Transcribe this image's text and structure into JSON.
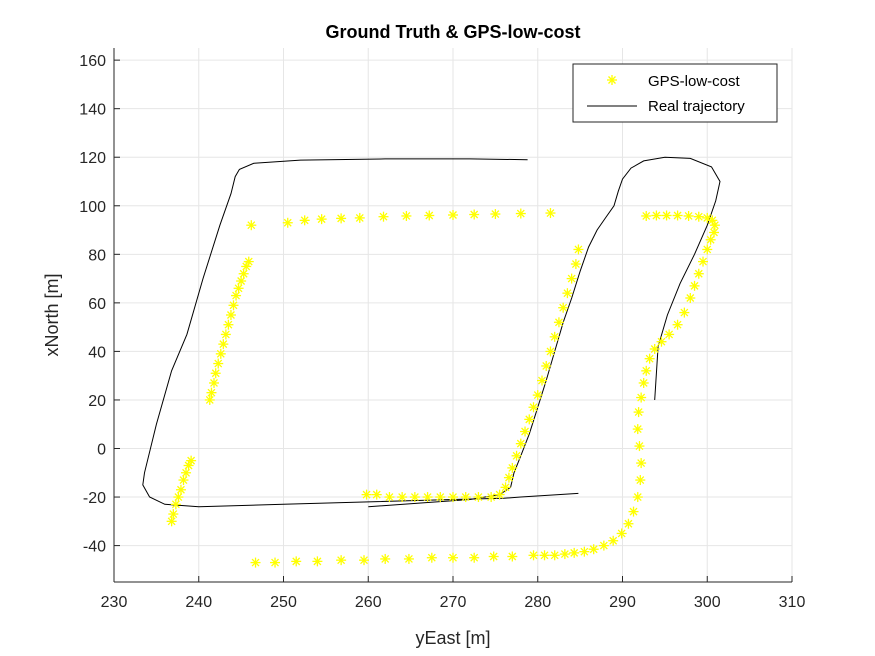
{
  "chart_data": {
    "type": "scatter",
    "title": "Ground Truth & GPS-low-cost",
    "xlabel": "yEast [m]",
    "ylabel": "xNorth [m]",
    "xlim": [
      230,
      310
    ],
    "ylim": [
      -55,
      165
    ],
    "xticks": [
      230,
      240,
      250,
      260,
      270,
      280,
      290,
      300,
      310
    ],
    "yticks": [
      -40,
      -20,
      0,
      20,
      40,
      60,
      80,
      100,
      120,
      140,
      160
    ],
    "grid": true,
    "legend_position": "top-right",
    "colors": {
      "gps": "#ffff00",
      "trajectory": "#000000",
      "axes": "#262626",
      "grid": "#e6e6e6"
    },
    "series": [
      {
        "name": "GPS-low-cost",
        "kind": "marker",
        "marker": "*",
        "x": [
          236.8,
          237.0,
          237.3,
          237.6,
          237.9,
          238.2,
          238.5,
          238.8,
          239.1,
          241.3,
          241.5,
          241.8,
          242.0,
          242.3,
          242.6,
          242.9,
          243.2,
          243.5,
          243.8,
          244.1,
          244.4,
          244.7,
          245.0,
          245.3,
          245.6,
          245.9,
          246.2,
          250.5,
          252.5,
          254.5,
          256.8,
          259.0,
          261.8,
          264.5,
          267.2,
          270.0,
          272.5,
          275.0,
          278.0,
          281.5,
          259.8,
          261.0,
          262.5,
          264.0,
          265.5,
          267.0,
          268.5,
          270.0,
          271.5,
          273.0,
          274.5,
          275.5,
          276.2,
          276.6,
          277.0,
          277.5,
          278.0,
          278.5,
          279.0,
          279.5,
          280.0,
          280.5,
          281.0,
          281.5,
          282.0,
          282.5,
          283.0,
          283.5,
          284.0,
          284.5,
          284.8,
          246.7,
          249.0,
          251.5,
          254.0,
          256.8,
          259.5,
          262.0,
          264.8,
          267.5,
          270.0,
          272.5,
          274.8,
          277.0,
          279.5,
          280.8,
          282.0,
          283.2,
          284.3,
          285.5,
          286.6,
          287.8,
          288.9,
          289.9,
          290.7,
          291.3,
          291.8,
          292.1,
          292.2,
          292.0,
          291.8,
          291.9,
          292.2,
          292.5,
          292.8,
          293.2,
          293.8,
          294.6,
          295.5,
          296.5,
          297.3,
          298.0,
          298.5,
          299.0,
          299.5,
          300.0,
          300.4,
          300.8,
          300.9,
          300.6,
          300.0,
          299.0,
          297.8,
          296.5,
          295.2,
          294.0,
          292.8
        ],
        "y": [
          -30,
          -27,
          -23,
          -20,
          -17,
          -13,
          -10,
          -7,
          -5,
          20,
          23,
          27,
          31,
          35,
          39,
          43,
          47,
          51,
          55,
          59,
          63,
          66,
          69,
          72,
          75,
          77,
          92,
          93,
          94,
          94.5,
          94.8,
          95,
          95.5,
          95.8,
          96,
          96.2,
          96.4,
          96.6,
          96.8,
          97,
          -19,
          -19,
          -20,
          -20,
          -20,
          -20,
          -20,
          -20,
          -20,
          -20,
          -20,
          -19,
          -16,
          -12,
          -8,
          -3,
          2,
          7,
          12,
          17,
          22,
          28,
          34,
          40,
          46,
          52,
          58,
          64,
          70,
          76,
          82,
          -47,
          -47,
          -46.5,
          -46.5,
          -46,
          -46,
          -45.5,
          -45.5,
          -45,
          -45,
          -45,
          -44.5,
          -44.5,
          -44,
          -44,
          -44,
          -43.5,
          -43,
          -42.5,
          -41.5,
          -40,
          -38,
          -35,
          -31,
          -26,
          -20,
          -13,
          -6,
          1,
          8,
          15,
          21,
          27,
          32,
          37,
          41,
          44,
          47,
          51,
          56,
          62,
          67,
          72,
          77,
          82,
          86,
          89,
          92,
          94,
          95,
          95.5,
          95.8,
          96,
          96,
          96,
          95.8
        ]
      },
      {
        "name": "Real trajectory",
        "kind": "line",
        "x": [
          278.8,
          272.0,
          262.0,
          252.0,
          246.5,
          244.8,
          244.3,
          243.8,
          242.5,
          240.5,
          238.6,
          236.8,
          235.0,
          233.6,
          233.4,
          234.2,
          236.0,
          240.0,
          250.0,
          260.0,
          270.0,
          276.0,
          278.0,
          284.8
        ],
        "y": [
          119,
          119.3,
          119.3,
          118.8,
          117.5,
          115,
          112,
          105,
          92,
          70,
          47,
          32,
          10,
          -10,
          -15,
          -20,
          -23,
          -24,
          -23,
          -22,
          -21,
          -20.5,
          -20,
          -18.5
        ],
        "segments": [
          {
            "x": [
              260.0,
              266.0,
              272.0,
              275.5,
              276.8,
              277.2,
              278.0,
              279.0,
              280.0,
              281.0,
              282.0,
              283.0,
              284.0,
              285.0,
              286.0,
              287.0,
              288.0,
              289.0,
              289.5,
              290.0,
              291.0,
              292.5,
              295.0,
              298.0,
              300.5,
              301.5,
              301.0,
              300.0,
              298.5,
              296.8,
              295.3,
              294.2,
              293.8
            ],
            "y": [
              -24,
              -22.5,
              -21,
              -19,
              -16,
              -10,
              -3,
              6,
              17,
              28,
              40,
              52,
              62,
              73,
              83,
              90,
              95,
              100,
              106,
              111,
              115.5,
              118.5,
              120,
              119.5,
              116,
              110,
              102,
              92,
              80,
              68,
              55,
              42,
              20
            ]
          }
        ]
      }
    ]
  }
}
